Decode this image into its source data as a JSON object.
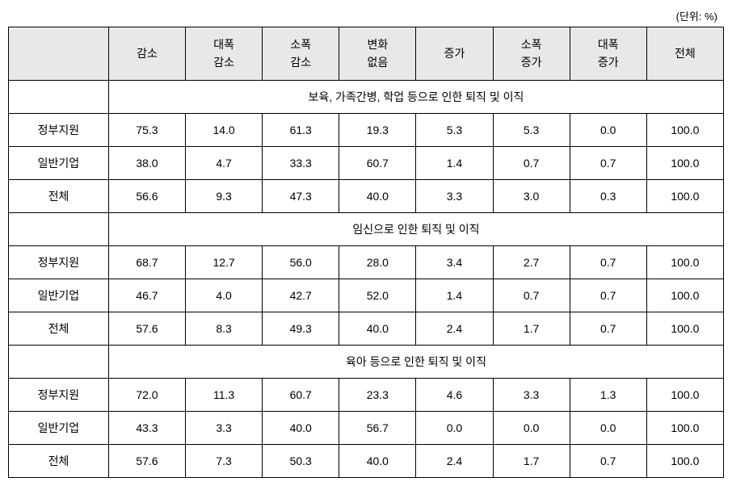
{
  "unit_label": "(단위: %)",
  "headers": {
    "blank": "",
    "decrease": "감소",
    "large_decrease": "대폭\n감소",
    "small_decrease": "소폭\n감소",
    "no_change": "변화\n없음",
    "increase": "증가",
    "small_increase": "소폭\n증가",
    "large_increase": "대폭\n증가",
    "total": "전체"
  },
  "sections": [
    {
      "title": "보육, 가족간병, 학업 등으로 인한 퇴직 및 이직",
      "rows": [
        {
          "label": "정부지원",
          "values": [
            "75.3",
            "14.0",
            "61.3",
            "19.3",
            "5.3",
            "5.3",
            "0.0",
            "100.0"
          ]
        },
        {
          "label": "일반기업",
          "values": [
            "38.0",
            "4.7",
            "33.3",
            "60.7",
            "1.4",
            "0.7",
            "0.7",
            "100.0"
          ]
        },
        {
          "label": "전체",
          "values": [
            "56.6",
            "9.3",
            "47.3",
            "40.0",
            "3.3",
            "3.0",
            "0.3",
            "100.0"
          ]
        }
      ]
    },
    {
      "title": "임신으로 인한 퇴직 및 이직",
      "rows": [
        {
          "label": "정부지원",
          "values": [
            "68.7",
            "12.7",
            "56.0",
            "28.0",
            "3.4",
            "2.7",
            "0.7",
            "100.0"
          ]
        },
        {
          "label": "일반기업",
          "values": [
            "46.7",
            "4.0",
            "42.7",
            "52.0",
            "1.4",
            "0.7",
            "0.7",
            "100.0"
          ]
        },
        {
          "label": "전체",
          "values": [
            "57.6",
            "8.3",
            "49.3",
            "40.0",
            "2.4",
            "1.7",
            "0.7",
            "100.0"
          ]
        }
      ]
    },
    {
      "title": "육아 등으로 인한 퇴직 및 이직",
      "rows": [
        {
          "label": "정부지원",
          "values": [
            "72.0",
            "11.3",
            "60.7",
            "23.3",
            "4.6",
            "3.3",
            "1.3",
            "100.0"
          ]
        },
        {
          "label": "일반기업",
          "values": [
            "43.3",
            "3.3",
            "40.0",
            "56.7",
            "0.0",
            "0.0",
            "0.0",
            "100.0"
          ]
        },
        {
          "label": "전체",
          "values": [
            "57.6",
            "7.3",
            "50.3",
            "40.0",
            "2.4",
            "1.7",
            "0.7",
            "100.0"
          ]
        }
      ]
    }
  ],
  "styling": {
    "header_bg": "#e8e8e8",
    "border_color": "#000000",
    "font_size_header": 14,
    "font_size_cell": 14,
    "font_size_unit": 13,
    "font_family": "Malgun Gothic",
    "cell_padding": "10px 4px",
    "background": "#ffffff"
  }
}
